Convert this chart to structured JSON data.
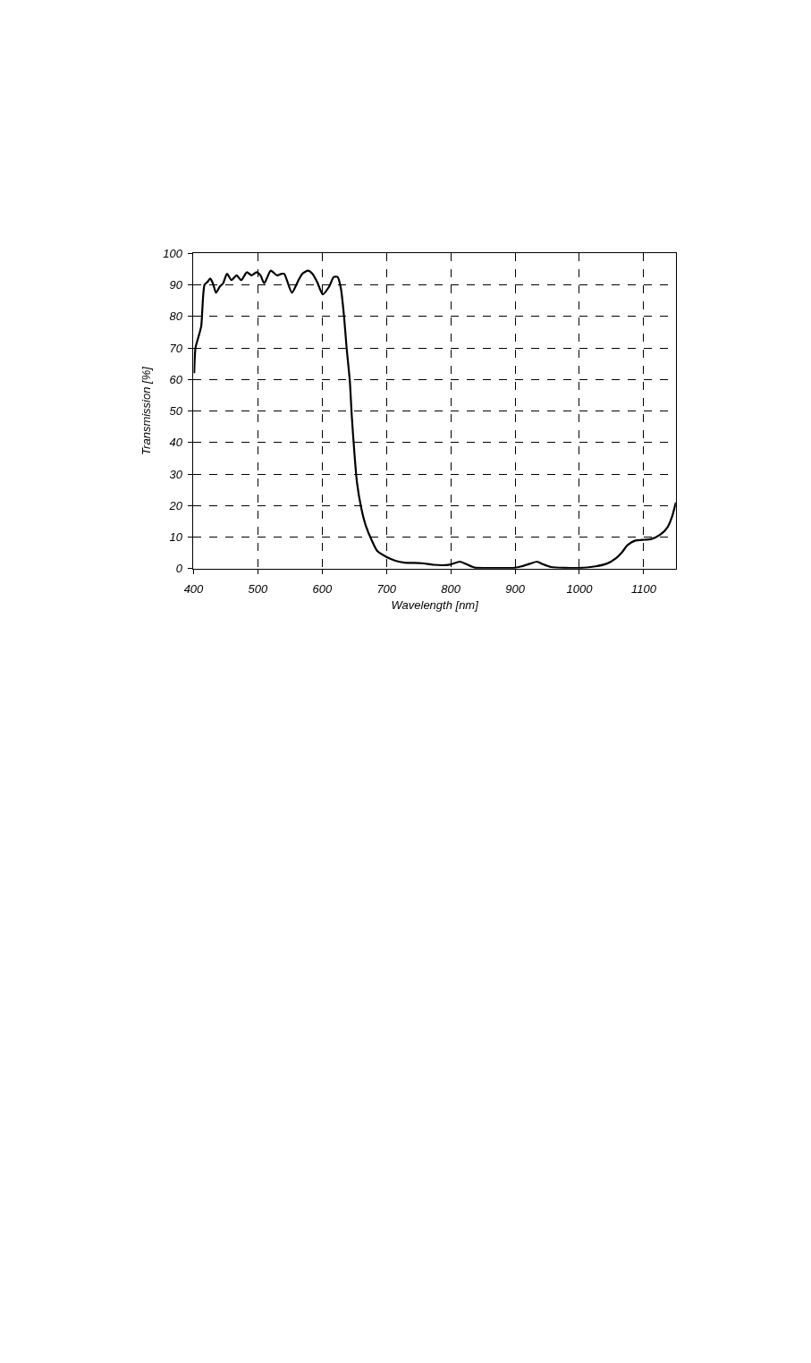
{
  "chart_data": {
    "type": "line",
    "xlabel": "Wavelength [nm]",
    "ylabel": "Transmission [%]",
    "x": [
      401,
      403,
      409,
      412,
      417,
      422,
      426,
      430,
      435,
      441,
      446,
      452,
      459,
      467,
      474,
      483,
      490,
      498,
      504,
      510,
      520,
      530,
      537,
      541,
      553,
      562,
      569,
      578,
      585,
      592,
      601,
      611,
      618,
      624,
      629,
      634,
      638,
      643,
      646,
      650,
      654,
      661,
      668,
      677,
      686,
      700,
      714,
      728,
      755,
      773,
      792,
      801,
      814,
      824,
      837,
      860,
      897,
      910,
      924,
      934,
      943,
      956,
      998,
      1025,
      1043,
      1057,
      1066,
      1075,
      1087,
      1098,
      1112,
      1126,
      1137,
      1144,
      1150
    ],
    "series": [
      {
        "color": "#000000",
        "values": [
          62,
          70,
          74.5,
          77,
          90,
          91,
          92,
          90.5,
          87.5,
          89.5,
          90.5,
          93.5,
          91.5,
          93,
          91.5,
          94,
          93,
          94,
          93,
          90.5,
          94.5,
          93,
          93.5,
          93.5,
          87.5,
          91,
          93.5,
          94.5,
          93.5,
          91,
          87,
          89.5,
          92.5,
          92.5,
          89,
          80,
          70,
          59.5,
          48.5,
          37,
          27.5,
          19,
          13.5,
          9,
          5.5,
          3.7,
          2.5,
          1.9,
          1.7,
          1.2,
          1.1,
          1.4,
          2.2,
          1.4,
          0.3,
          0.2,
          0.2,
          0.7,
          1.6,
          2.2,
          1.4,
          0.5,
          0.2,
          0.7,
          1.6,
          3.3,
          5.1,
          7.5,
          8.9,
          9.1,
          9.4,
          10.8,
          13.1,
          16.4,
          21
        ]
      }
    ],
    "xlim": [
      400,
      1150
    ],
    "ylim": [
      0,
      100
    ],
    "xticks": [
      400,
      500,
      600,
      700,
      800,
      900,
      1000,
      1100
    ],
    "yticks": [
      0,
      10,
      20,
      30,
      40,
      50,
      60,
      70,
      80,
      90,
      100
    ],
    "grid": true,
    "marker": "none",
    "line_style": "solid"
  }
}
